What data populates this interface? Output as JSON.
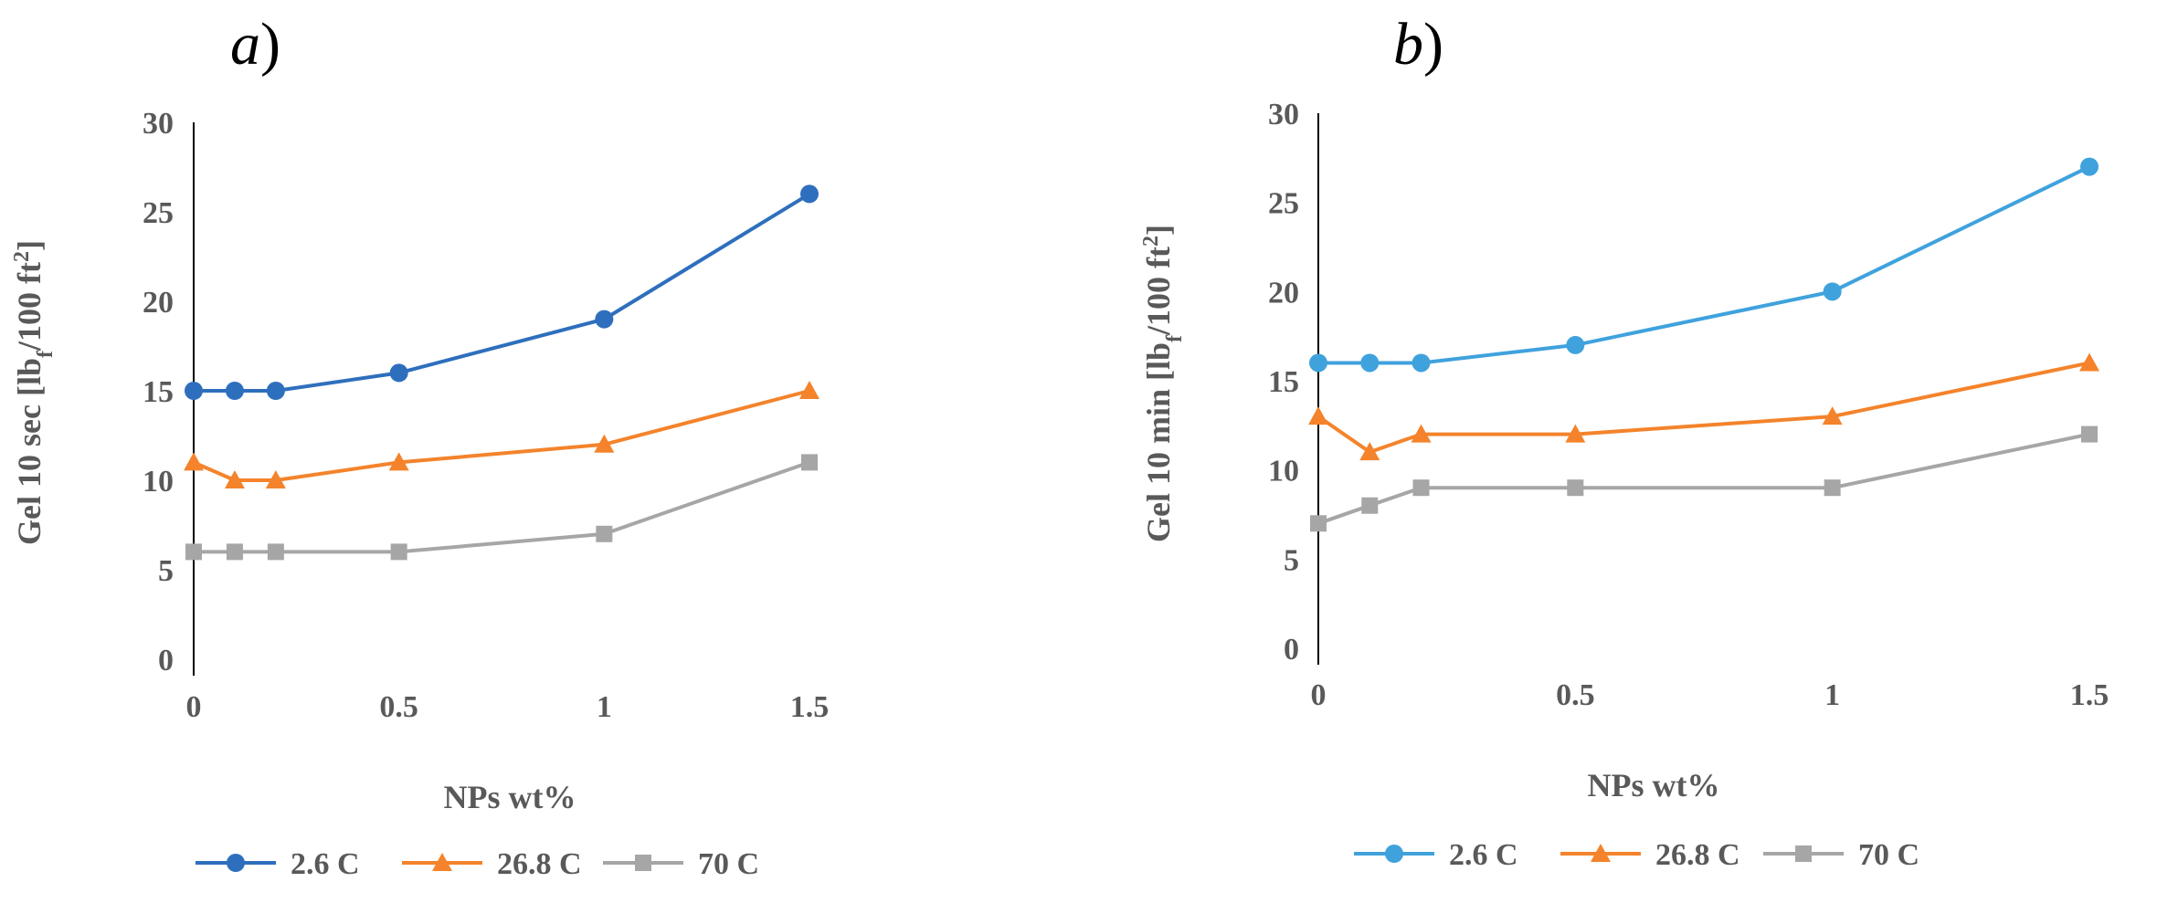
{
  "chart_data": [
    {
      "type": "line",
      "panel_label": "a",
      "panel_paren": ")",
      "title": "",
      "xlabel": "NPs wt%",
      "ylabel": "Gel 10 sec [lb",
      "ylabel_sub": "f",
      "ylabel_mid": "/100 ft",
      "ylabel_sup": "2",
      "ylabel_end": "]",
      "xlim": [
        0,
        1.5
      ],
      "ylim": [
        0,
        30
      ],
      "x_ticks": [
        "0",
        "0.5",
        "1",
        "1.5"
      ],
      "y_ticks": [
        "0",
        "5",
        "10",
        "15",
        "20",
        "25",
        "30"
      ],
      "x": [
        0,
        0.1,
        0.2,
        0.5,
        1,
        1.5
      ],
      "series": [
        {
          "name": "2.6 C",
          "color": "#2e6fbd",
          "marker": "circle",
          "values": [
            15,
            15,
            15,
            16,
            19,
            26
          ]
        },
        {
          "name": "26.8 C",
          "color": "#f4832b",
          "marker": "triangle",
          "values": [
            11,
            10,
            10,
            11,
            12,
            15
          ]
        },
        {
          "name": "70 C",
          "color": "#a6a6a6",
          "marker": "square",
          "values": [
            6,
            6,
            6,
            6,
            7,
            11
          ]
        }
      ]
    },
    {
      "type": "line",
      "panel_label": "b",
      "panel_paren": ")",
      "title": "",
      "xlabel": "NPs wt%",
      "ylabel": "Gel 10 min [lb",
      "ylabel_sub": "f",
      "ylabel_mid": "/100 ft",
      "ylabel_sup": "2",
      "ylabel_end": "]",
      "xlim": [
        0,
        1.5
      ],
      "ylim": [
        0,
        30
      ],
      "x_ticks": [
        "0",
        "0.5",
        "1",
        "1.5"
      ],
      "y_ticks": [
        "0",
        "5",
        "10",
        "15",
        "20",
        "25",
        "30"
      ],
      "x": [
        0,
        0.1,
        0.2,
        0.5,
        1,
        1.5
      ],
      "series": [
        {
          "name": "2.6 C",
          "color": "#3fa2dd",
          "marker": "circle",
          "values": [
            16,
            16,
            16,
            17,
            20,
            27
          ]
        },
        {
          "name": "26.8 C",
          "color": "#f4832b",
          "marker": "triangle",
          "values": [
            13,
            11,
            12,
            12,
            13,
            16
          ]
        },
        {
          "name": "70 C",
          "color": "#a6a6a6",
          "marker": "square",
          "values": [
            7,
            8,
            9,
            9,
            9,
            12
          ]
        }
      ]
    }
  ]
}
